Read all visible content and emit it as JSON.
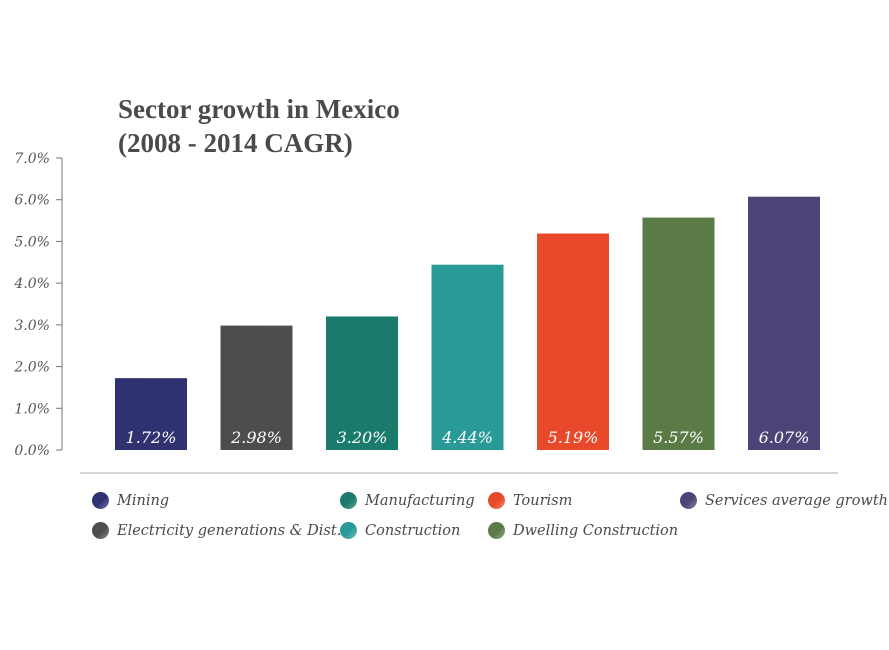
{
  "chart_data": {
    "type": "bar",
    "title_lines": [
      "Sector growth in Mexico",
      "(2008 - 2014 CAGR)"
    ],
    "categories": [
      "Mining",
      "Electricity generations & Dist.",
      "Manufacturing",
      "Construction",
      "Tourism",
      "Dwelling Construction",
      "Services average growth"
    ],
    "values": [
      1.72,
      2.98,
      3.2,
      4.44,
      5.19,
      5.57,
      6.07
    ],
    "value_labels": [
      "1.72%",
      "2.98%",
      "3.20%",
      "4.44%",
      "5.19%",
      "5.57%",
      "6.07%"
    ],
    "colors": [
      "#2f3170",
      "#4d4d4d",
      "#1a7a6b",
      "#2a9a98",
      "#e8492a",
      "#5a7a46",
      "#4e4377"
    ],
    "ylim": [
      0,
      7
    ],
    "yticks": [
      "0.0%",
      "1.0%",
      "2.0%",
      "3.0%",
      "4.0%",
      "5.0%",
      "6.0%",
      "7.0%"
    ],
    "grid": false,
    "legend": {
      "position": "bottom",
      "items": [
        {
          "label": "Mining",
          "color": "#2f3170"
        },
        {
          "label": "Electricity generations & Dist.",
          "color": "#4d4d4d"
        },
        {
          "label": "Manufacturing",
          "color": "#1a7a6b"
        },
        {
          "label": "Construction",
          "color": "#2a9a98"
        },
        {
          "label": "Tourism",
          "color": "#e8492a"
        },
        {
          "label": "Dwelling Construction",
          "color": "#5a7a46"
        },
        {
          "label": "Services average growth",
          "color": "#4e4377"
        }
      ]
    }
  }
}
